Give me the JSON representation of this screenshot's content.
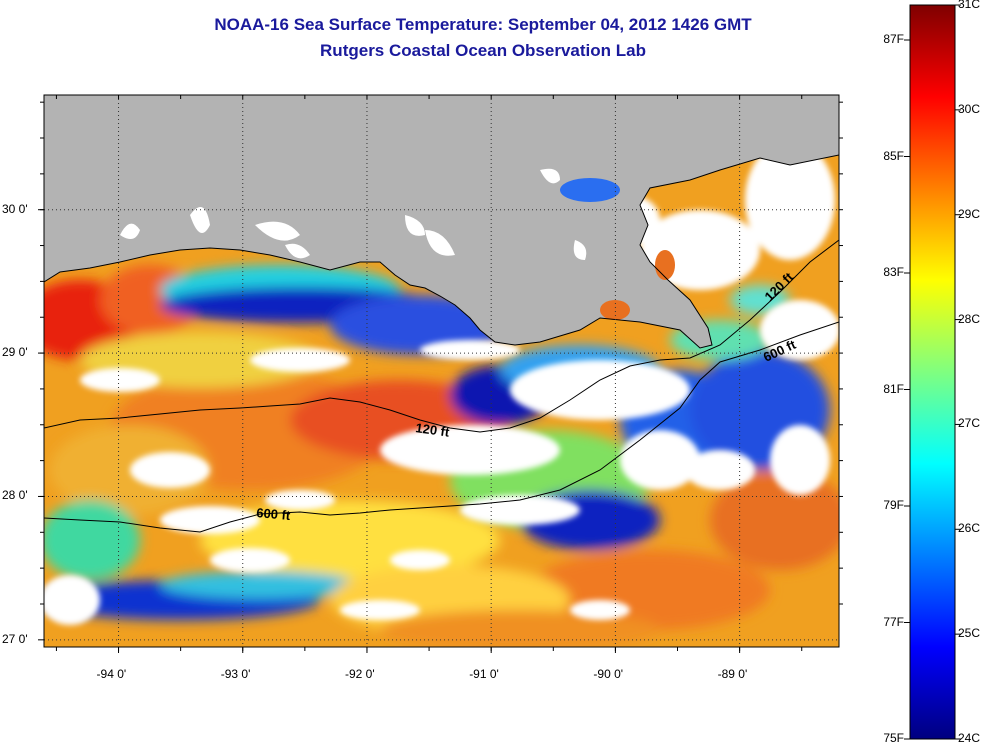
{
  "title": {
    "line1": "NOAA-16 Sea Surface Temperature:  September 04, 2012 1426 GMT",
    "line2": "Rutgers Coastal Ocean Observation Lab"
  },
  "map": {
    "lon_ticks": [
      {
        "value": -94,
        "label": "-94 0'"
      },
      {
        "value": -93,
        "label": "-93 0'"
      },
      {
        "value": -92,
        "label": "-92 0'"
      },
      {
        "value": -91,
        "label": "-91 0'"
      },
      {
        "value": -90,
        "label": "-90 0'"
      },
      {
        "value": -89,
        "label": "-89 0'"
      }
    ],
    "lat_ticks": [
      {
        "value": 30,
        "label": "30 0'"
      },
      {
        "value": 29,
        "label": "29 0'"
      },
      {
        "value": 28,
        "label": "28 0'"
      },
      {
        "value": 27,
        "label": "27 0'"
      }
    ],
    "lon_range": [
      -94.6,
      -88.2
    ],
    "lat_range": [
      26.95,
      30.8
    ],
    "contours": [
      {
        "label": "120 ft"
      },
      {
        "label": "600 ft"
      },
      {
        "label": "120 ft"
      },
      {
        "label": "600 ft"
      }
    ],
    "colors": {
      "land": "#b3b3b3",
      "cloud": "#ffffff",
      "grid": "#333333"
    }
  },
  "colorbar": {
    "celsius": [
      "31C",
      "30C",
      "29C",
      "28C",
      "27C",
      "26C",
      "25C",
      "24C"
    ],
    "fahrenheit": [
      "87F",
      "85F",
      "83F",
      "81F",
      "79F",
      "77F",
      "75F"
    ]
  }
}
